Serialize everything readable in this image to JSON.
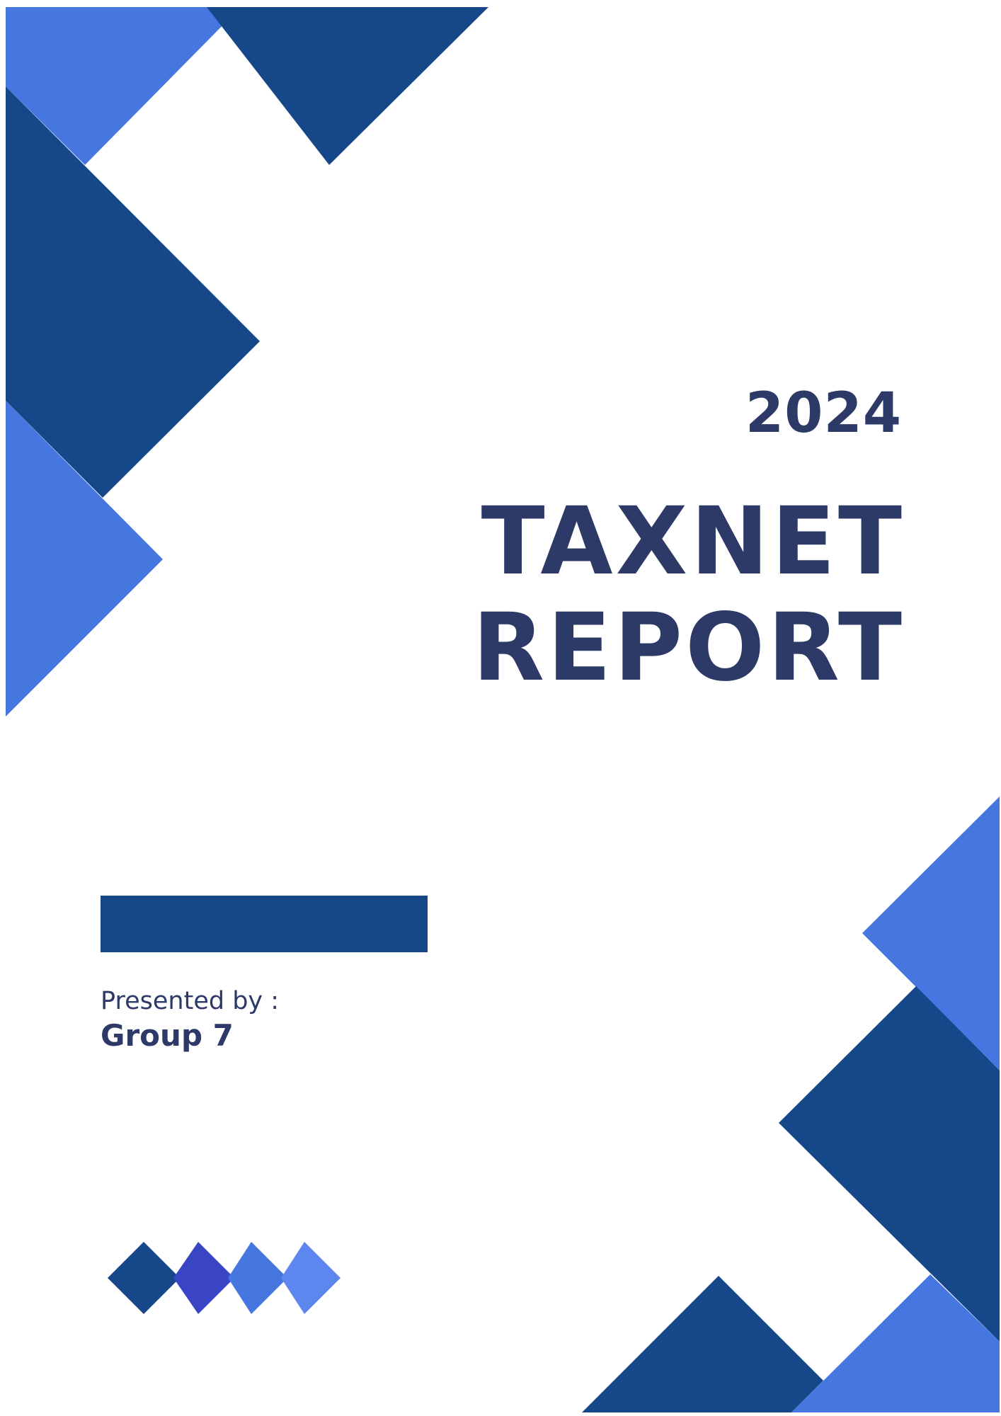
{
  "cover": {
    "year": "2024",
    "title_line1": "TAXNET",
    "title_line2": "REPORT",
    "presented_label": "Presented by :",
    "presenter": "Group 7"
  },
  "colors": {
    "navy_text": "#2d3a68",
    "dark_blue": "#164889",
    "bright_blue": "#4677e1",
    "indigo": "#3a45c6",
    "light_blue": "#5d86ee"
  }
}
